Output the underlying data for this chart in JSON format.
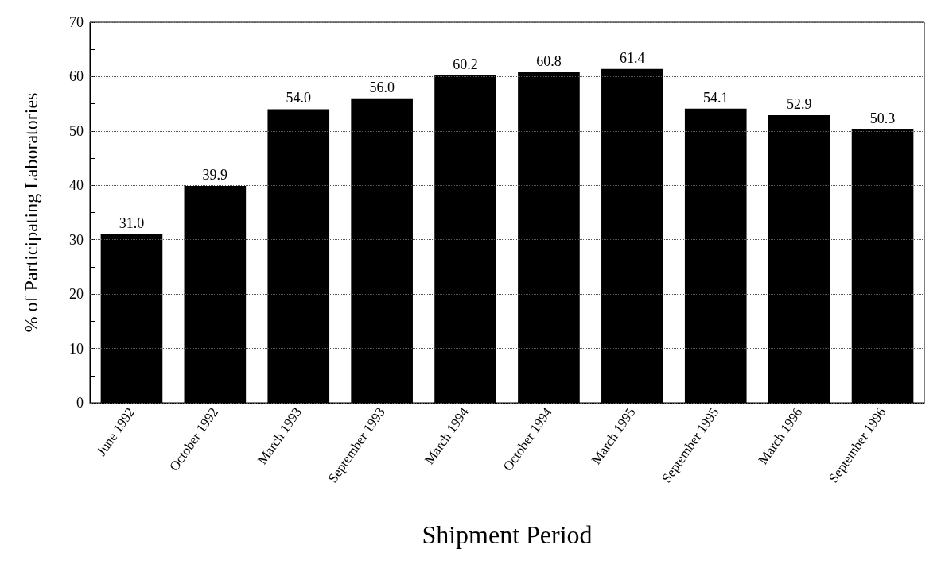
{
  "chart_data": {
    "type": "bar",
    "xlabel": "Shipment Period",
    "ylabel": "% of Participating Laboratories",
    "categories": [
      "June 1992",
      "October 1992",
      "March 1993",
      "September 1993",
      "March 1994",
      "October 1994",
      "March 1995",
      "September 1995",
      "March 1996",
      "September 1996"
    ],
    "values": [
      31.0,
      39.9,
      54.0,
      56.0,
      60.2,
      60.8,
      61.4,
      54.1,
      52.9,
      50.3
    ],
    "value_labels": [
      "31.0",
      "39.9",
      "54.0",
      "56.0",
      "60.2",
      "60.8",
      "61.4",
      "54.1",
      "52.9",
      "50.3"
    ],
    "color": "#000000",
    "ylim": [
      0,
      70
    ],
    "yticks": [
      0,
      {
        "value": 5,
        "label": null
      },
      10,
      {
        "value": 15,
        "label": null
      },
      20,
      {
        "value": 25,
        "label": null
      },
      30,
      {
        "value": 35,
        "label": null
      },
      40,
      {
        "value": 45,
        "label": null
      },
      50,
      {
        "value": 55,
        "label": null
      },
      60,
      {
        "value": 65,
        "label": null
      },
      70
    ],
    "grid": "y"
  }
}
